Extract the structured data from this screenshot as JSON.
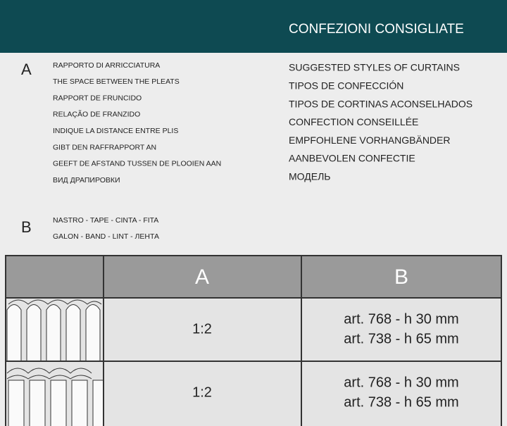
{
  "header": {
    "title": "CONFEZIONI CONSIGLIATE"
  },
  "legend": {
    "a": {
      "letter": "A",
      "lines": [
        "RAPPORTO DI ARRICCIATURA",
        "THE SPACE BETWEEN THE PLEATS",
        "RAPPORT DE FRUNCIDO",
        "RELAÇÃO DE FRANZIDO",
        "INDIQUE LA DISTANCE ENTRE PLIS",
        "GIBT DEN RAFFRAPPORT AN",
        "GEEFT DE AFSTAND TUSSEN DE PLOOIEN AAN",
        "ВИД ДРАПИРОВКИ"
      ]
    },
    "b": {
      "letter": "B",
      "lines": [
        "NASTRO - TAPE - CINTA - FITA",
        "GALON - BAND - LINT - ЛЕНТА"
      ]
    }
  },
  "right_column": {
    "lines": [
      "SUGGESTED STYLES OF CURTAINS",
      "TIPOS DE CONFECCIÓN",
      "TIPOS DE CORTINAS ACONSELHADOS",
      "CONFECTION CONSEILLÉE",
      "EMPFOHLENE VORHANGBÄNDER",
      "AANBEVOLEN CONFECTIE",
      "МОДЕЛЬ"
    ]
  },
  "table": {
    "columns": [
      "A",
      "B"
    ],
    "rows": [
      {
        "ratio": "1:2",
        "articles": [
          "art. 768 - h 30 mm",
          "art. 738 - h 65 mm"
        ]
      },
      {
        "ratio": "1:2",
        "articles": [
          "art. 768 - h 30 mm",
          "art. 738 - h 65 mm"
        ]
      }
    ]
  }
}
